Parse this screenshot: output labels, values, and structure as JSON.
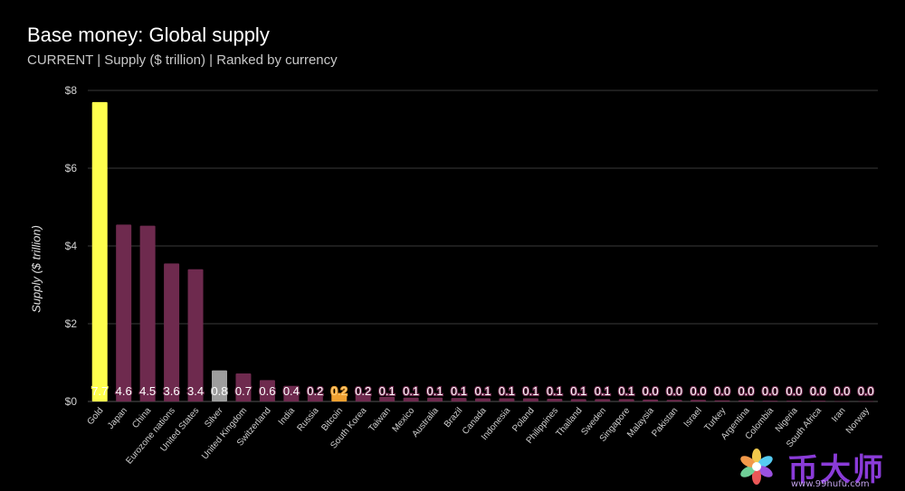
{
  "header": {
    "title": "Base money: Global supply",
    "subtitle": "CURRENT | Supply ($ trillion) | Ranked by currency"
  },
  "colors": {
    "gold": "#ffff4d",
    "silver": "#9e9e9e",
    "bitcoin": "#f0a030",
    "currency": "#6e2a4e",
    "grid": "#3a3a3a",
    "background": "#000000"
  },
  "watermark": {
    "text": "币大师",
    "url": "www.99hufu.com"
  },
  "chart_data": {
    "type": "bar",
    "title": "Base money: Global supply",
    "subtitle": "CURRENT | Supply ($ trillion) | Ranked by currency",
    "xlabel": "",
    "ylabel": "Supply ($ trillion)",
    "ylim": [
      0,
      8
    ],
    "yticks": [
      0,
      2,
      4,
      6,
      8
    ],
    "ytick_labels": [
      "$0",
      "$2",
      "$4",
      "$6",
      "$8"
    ],
    "grid": true,
    "categories": [
      "Gold",
      "Japan",
      "China",
      "Eurozone nations",
      "United States",
      "Silver",
      "United Kingdom",
      "Switzerland",
      "India",
      "Russia",
      "Bitcoin",
      "South Korea",
      "Taiwan",
      "Mexico",
      "Australia",
      "Brazil",
      "Canada",
      "Indonesia",
      "Poland",
      "Philippines",
      "Thailand",
      "Sweden",
      "Singapore",
      "Malaysia",
      "Pakistan",
      "Israel",
      "Turkey",
      "Argentina",
      "Colombia",
      "Nigeria",
      "South Africa",
      "Iran",
      "Norway"
    ],
    "values": [
      7.7,
      4.55,
      4.52,
      3.55,
      3.4,
      0.8,
      0.72,
      0.55,
      0.4,
      0.22,
      0.2,
      0.18,
      0.12,
      0.1,
      0.1,
      0.09,
      0.08,
      0.08,
      0.08,
      0.07,
      0.06,
      0.06,
      0.06,
      0.05,
      0.04,
      0.04,
      0.03,
      0.03,
      0.02,
      0.02,
      0.02,
      0.01,
      0.01
    ],
    "data_labels": [
      "7.7",
      "4.6",
      "4.5",
      "3.6",
      "3.4",
      "0.8",
      "0.7",
      "0.6",
      "0.4",
      "0.2",
      "0.2",
      "0.2",
      "0.1",
      "0.1",
      "0.1",
      "0.1",
      "0.1",
      "0.1",
      "0.1",
      "0.1",
      "0.1",
      "0.1",
      "0.1",
      "0.0",
      "0.0",
      "0.0",
      "0.0",
      "0.0",
      "0.0",
      "0.0",
      "0.0",
      "0.0",
      "0.0"
    ],
    "bar_kinds": [
      "gold",
      "currency",
      "currency",
      "currency",
      "currency",
      "silver",
      "currency",
      "currency",
      "currency",
      "currency",
      "bitcoin",
      "currency",
      "currency",
      "currency",
      "currency",
      "currency",
      "currency",
      "currency",
      "currency",
      "currency",
      "currency",
      "currency",
      "currency",
      "currency",
      "currency",
      "currency",
      "currency",
      "currency",
      "currency",
      "currency",
      "currency",
      "currency",
      "currency"
    ]
  }
}
